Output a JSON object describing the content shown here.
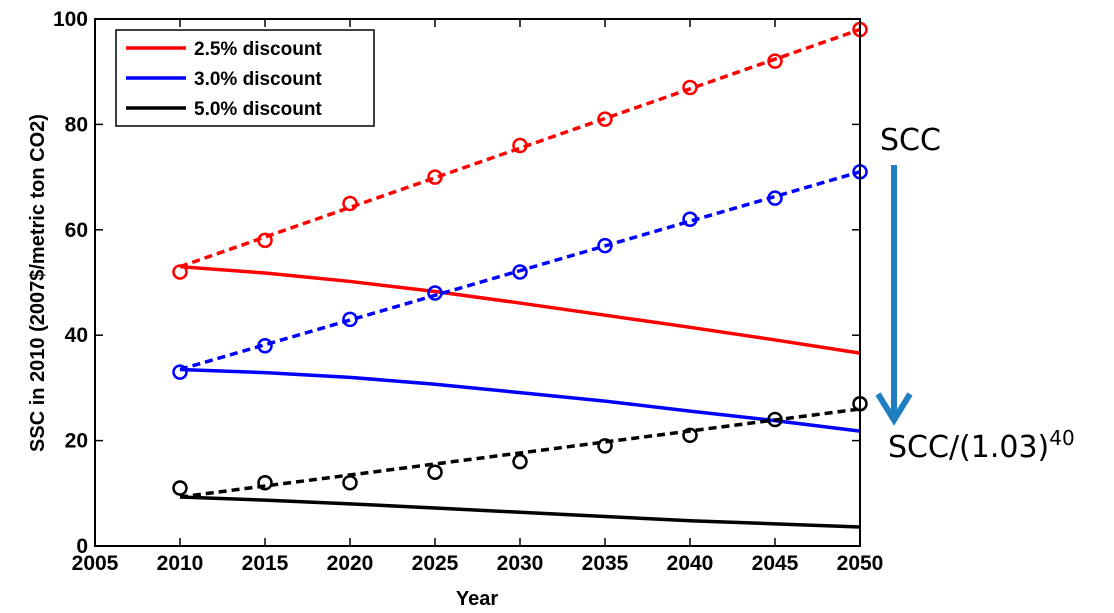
{
  "chart_data": {
    "type": "line",
    "title": "",
    "xlabel": "Year",
    "ylabel": "SSC in 2010 (2007$/metric ton CO2)",
    "xlim": [
      2005,
      2050
    ],
    "ylim": [
      0,
      100
    ],
    "xticks": [
      2005,
      2010,
      2015,
      2020,
      2025,
      2030,
      2035,
      2040,
      2045,
      2050
    ],
    "yticks": [
      0,
      20,
      40,
      60,
      80,
      100
    ],
    "grid": false,
    "legend_position": "top-left",
    "legend": [
      "2.5% discount",
      "3.0% discount",
      "5.0% discount"
    ],
    "series": [
      {
        "name": "2.5% discount",
        "color": "#ff0000",
        "marker_x": [
          2010,
          2015,
          2020,
          2025,
          2030,
          2035,
          2040,
          2045,
          2050
        ],
        "marker_y": [
          52,
          58,
          65,
          70,
          76,
          81,
          87,
          92,
          98
        ],
        "dashed_fit": [
          [
            2010,
            53
          ],
          [
            2050,
            98
          ]
        ],
        "solid_x": [
          2010,
          2015,
          2020,
          2025,
          2030,
          2035,
          2040,
          2045,
          2050
        ],
        "solid_y": [
          53,
          51.8,
          50.2,
          48.3,
          46.1,
          43.8,
          41.5,
          39.1,
          36.6
        ]
      },
      {
        "name": "3.0% discount",
        "color": "#0000ff",
        "marker_x": [
          2010,
          2015,
          2020,
          2025,
          2030,
          2035,
          2040,
          2045,
          2050
        ],
        "marker_y": [
          33,
          38,
          43,
          48,
          52,
          57,
          62,
          66,
          71
        ],
        "dashed_fit": [
          [
            2010,
            33.5
          ],
          [
            2050,
            71
          ]
        ],
        "solid_x": [
          2010,
          2015,
          2020,
          2025,
          2030,
          2035,
          2040,
          2045,
          2050
        ],
        "solid_y": [
          33.5,
          32.9,
          32.0,
          30.7,
          29.1,
          27.5,
          25.6,
          23.8,
          21.8
        ]
      },
      {
        "name": "5.0% discount",
        "color": "#000000",
        "marker_x": [
          2010,
          2015,
          2020,
          2025,
          2030,
          2035,
          2040,
          2045,
          2050
        ],
        "marker_y": [
          11,
          12,
          12,
          14,
          16,
          19,
          21,
          24,
          27
        ],
        "dashed_fit": [
          [
            2010,
            9.3
          ],
          [
            2050,
            26
          ]
        ],
        "solid_x": [
          2010,
          2015,
          2020,
          2025,
          2030,
          2035,
          2040,
          2045,
          2050
        ],
        "solid_y": [
          9.3,
          8.7,
          8.0,
          7.2,
          6.4,
          5.6,
          4.8,
          4.2,
          3.6
        ]
      }
    ],
    "annotations": {
      "top_label": "SCC",
      "bottom_label_base": "SCC/(1.03)",
      "bottom_label_exponent": "40",
      "arrow_color": "#1f7fc0"
    }
  }
}
